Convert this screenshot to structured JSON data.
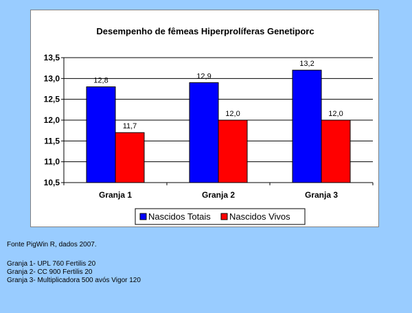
{
  "chart_data": {
    "type": "bar",
    "title": "Desempenho de fêmeas Hiperprolíferas Genetiporc",
    "categories": [
      "Granja 1",
      "Granja 2",
      "Granja 3"
    ],
    "series": [
      {
        "name": "Nascidos Totais",
        "color": "#0000ff",
        "values": [
          12.8,
          12.9,
          13.2
        ],
        "labels": [
          "12,8",
          "12,9",
          "13,2"
        ]
      },
      {
        "name": "Nascidos Vivos",
        "color": "#ff0000",
        "values": [
          11.7,
          12.0,
          12.0
        ],
        "labels": [
          "11,7",
          "12,0",
          "12,0"
        ]
      }
    ],
    "ylim": [
      10.5,
      13.5
    ],
    "yticks": [
      10.5,
      11.0,
      11.5,
      12.0,
      12.5,
      13.0,
      13.5
    ],
    "ytick_labels": [
      "10,5",
      "11,0",
      "11,5",
      "12,0",
      "12,5",
      "13,0",
      "13,5"
    ],
    "grid": true,
    "legend_position": "bottom",
    "xlabel": "",
    "ylabel": ""
  },
  "notes": {
    "source": "Fonte  PigWin R, dados 2007.",
    "farms": [
      "Granja 1- UPL 760 Fertilis 20",
      "Granja 2- CC 900 Fertilis 20",
      "Granja 3- Multiplicadora 500 avós Vigor 120"
    ]
  }
}
